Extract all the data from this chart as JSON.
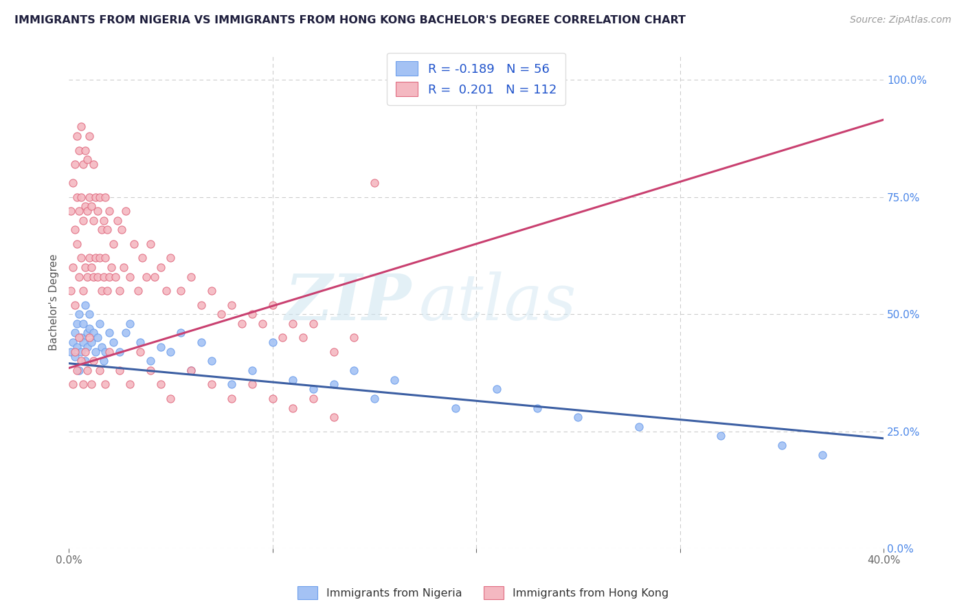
{
  "title": "IMMIGRANTS FROM NIGERIA VS IMMIGRANTS FROM HONG KONG BACHELOR'S DEGREE CORRELATION CHART",
  "source": "Source: ZipAtlas.com",
  "ylabel": "Bachelor's Degree",
  "xlim": [
    0.0,
    0.4
  ],
  "ylim": [
    0.0,
    1.05
  ],
  "x_ticks": [
    0.0,
    0.1,
    0.2,
    0.3,
    0.4
  ],
  "x_tick_labels": [
    "0.0%",
    "",
    "",
    "",
    "40.0%"
  ],
  "y_ticks_right": [
    0.0,
    0.25,
    0.5,
    0.75,
    1.0
  ],
  "y_tick_labels_right": [
    "0.0%",
    "25.0%",
    "50.0%",
    "75.0%",
    "100.0%"
  ],
  "nigeria_color": "#a4c2f4",
  "nigeria_edge_color": "#6d9eeb",
  "hk_color": "#f4b8c1",
  "hk_edge_color": "#e06b80",
  "trend_nigeria_color": "#3c5fa3",
  "trend_hk_color": "#c94070",
  "nigeria_R": -0.189,
  "nigeria_N": 56,
  "hk_R": 0.201,
  "hk_N": 112,
  "watermark_zip": "ZIP",
  "watermark_atlas": "atlas",
  "background_color": "#ffffff",
  "legend_label_nigeria": "Immigrants from Nigeria",
  "legend_label_hk": "Immigrants from Hong Kong",
  "nigeria_trend_x0": 0.0,
  "nigeria_trend_y0": 0.395,
  "nigeria_trend_x1": 0.4,
  "nigeria_trend_y1": 0.235,
  "hk_trend_x0": 0.0,
  "hk_trend_y0": 0.385,
  "hk_trend_x1": 0.4,
  "hk_trend_y1": 0.915,
  "nigeria_x": [
    0.001,
    0.002,
    0.003,
    0.003,
    0.004,
    0.004,
    0.005,
    0.005,
    0.006,
    0.006,
    0.007,
    0.007,
    0.008,
    0.008,
    0.009,
    0.009,
    0.01,
    0.01,
    0.011,
    0.012,
    0.013,
    0.014,
    0.015,
    0.016,
    0.017,
    0.018,
    0.02,
    0.022,
    0.025,
    0.028,
    0.03,
    0.035,
    0.04,
    0.045,
    0.05,
    0.055,
    0.06,
    0.065,
    0.07,
    0.08,
    0.09,
    0.1,
    0.11,
    0.12,
    0.13,
    0.14,
    0.15,
    0.16,
    0.19,
    0.21,
    0.23,
    0.25,
    0.28,
    0.32,
    0.35,
    0.37
  ],
  "nigeria_y": [
    0.42,
    0.44,
    0.46,
    0.41,
    0.48,
    0.43,
    0.5,
    0.38,
    0.45,
    0.42,
    0.48,
    0.44,
    0.52,
    0.4,
    0.46,
    0.43,
    0.5,
    0.47,
    0.44,
    0.46,
    0.42,
    0.45,
    0.48,
    0.43,
    0.4,
    0.42,
    0.46,
    0.44,
    0.42,
    0.46,
    0.48,
    0.44,
    0.4,
    0.43,
    0.42,
    0.46,
    0.38,
    0.44,
    0.4,
    0.35,
    0.38,
    0.44,
    0.36,
    0.34,
    0.35,
    0.38,
    0.32,
    0.36,
    0.3,
    0.34,
    0.3,
    0.28,
    0.26,
    0.24,
    0.22,
    0.2
  ],
  "hk_x": [
    0.001,
    0.001,
    0.002,
    0.002,
    0.003,
    0.003,
    0.003,
    0.004,
    0.004,
    0.004,
    0.005,
    0.005,
    0.005,
    0.006,
    0.006,
    0.006,
    0.007,
    0.007,
    0.007,
    0.008,
    0.008,
    0.008,
    0.009,
    0.009,
    0.009,
    0.01,
    0.01,
    0.01,
    0.011,
    0.011,
    0.012,
    0.012,
    0.012,
    0.013,
    0.013,
    0.014,
    0.014,
    0.015,
    0.015,
    0.016,
    0.016,
    0.017,
    0.017,
    0.018,
    0.018,
    0.019,
    0.019,
    0.02,
    0.02,
    0.021,
    0.022,
    0.023,
    0.024,
    0.025,
    0.026,
    0.027,
    0.028,
    0.03,
    0.032,
    0.034,
    0.036,
    0.038,
    0.04,
    0.042,
    0.045,
    0.048,
    0.05,
    0.055,
    0.06,
    0.065,
    0.07,
    0.075,
    0.08,
    0.085,
    0.09,
    0.095,
    0.1,
    0.105,
    0.11,
    0.115,
    0.12,
    0.13,
    0.14,
    0.15,
    0.002,
    0.003,
    0.004,
    0.005,
    0.006,
    0.007,
    0.008,
    0.009,
    0.01,
    0.011,
    0.012,
    0.015,
    0.018,
    0.02,
    0.025,
    0.03,
    0.035,
    0.04,
    0.045,
    0.05,
    0.06,
    0.07,
    0.08,
    0.09,
    0.1,
    0.11,
    0.12,
    0.13
  ],
  "hk_y": [
    0.55,
    0.72,
    0.6,
    0.78,
    0.52,
    0.68,
    0.82,
    0.65,
    0.75,
    0.88,
    0.58,
    0.72,
    0.85,
    0.62,
    0.75,
    0.9,
    0.55,
    0.7,
    0.82,
    0.6,
    0.73,
    0.85,
    0.58,
    0.72,
    0.83,
    0.62,
    0.75,
    0.88,
    0.6,
    0.73,
    0.58,
    0.7,
    0.82,
    0.62,
    0.75,
    0.58,
    0.72,
    0.62,
    0.75,
    0.55,
    0.68,
    0.58,
    0.7,
    0.62,
    0.75,
    0.55,
    0.68,
    0.58,
    0.72,
    0.6,
    0.65,
    0.58,
    0.7,
    0.55,
    0.68,
    0.6,
    0.72,
    0.58,
    0.65,
    0.55,
    0.62,
    0.58,
    0.65,
    0.58,
    0.6,
    0.55,
    0.62,
    0.55,
    0.58,
    0.52,
    0.55,
    0.5,
    0.52,
    0.48,
    0.5,
    0.48,
    0.52,
    0.45,
    0.48,
    0.45,
    0.48,
    0.42,
    0.45,
    0.78,
    0.35,
    0.42,
    0.38,
    0.45,
    0.4,
    0.35,
    0.42,
    0.38,
    0.45,
    0.35,
    0.4,
    0.38,
    0.35,
    0.42,
    0.38,
    0.35,
    0.42,
    0.38,
    0.35,
    0.32,
    0.38,
    0.35,
    0.32,
    0.35,
    0.32,
    0.3,
    0.32,
    0.28
  ]
}
